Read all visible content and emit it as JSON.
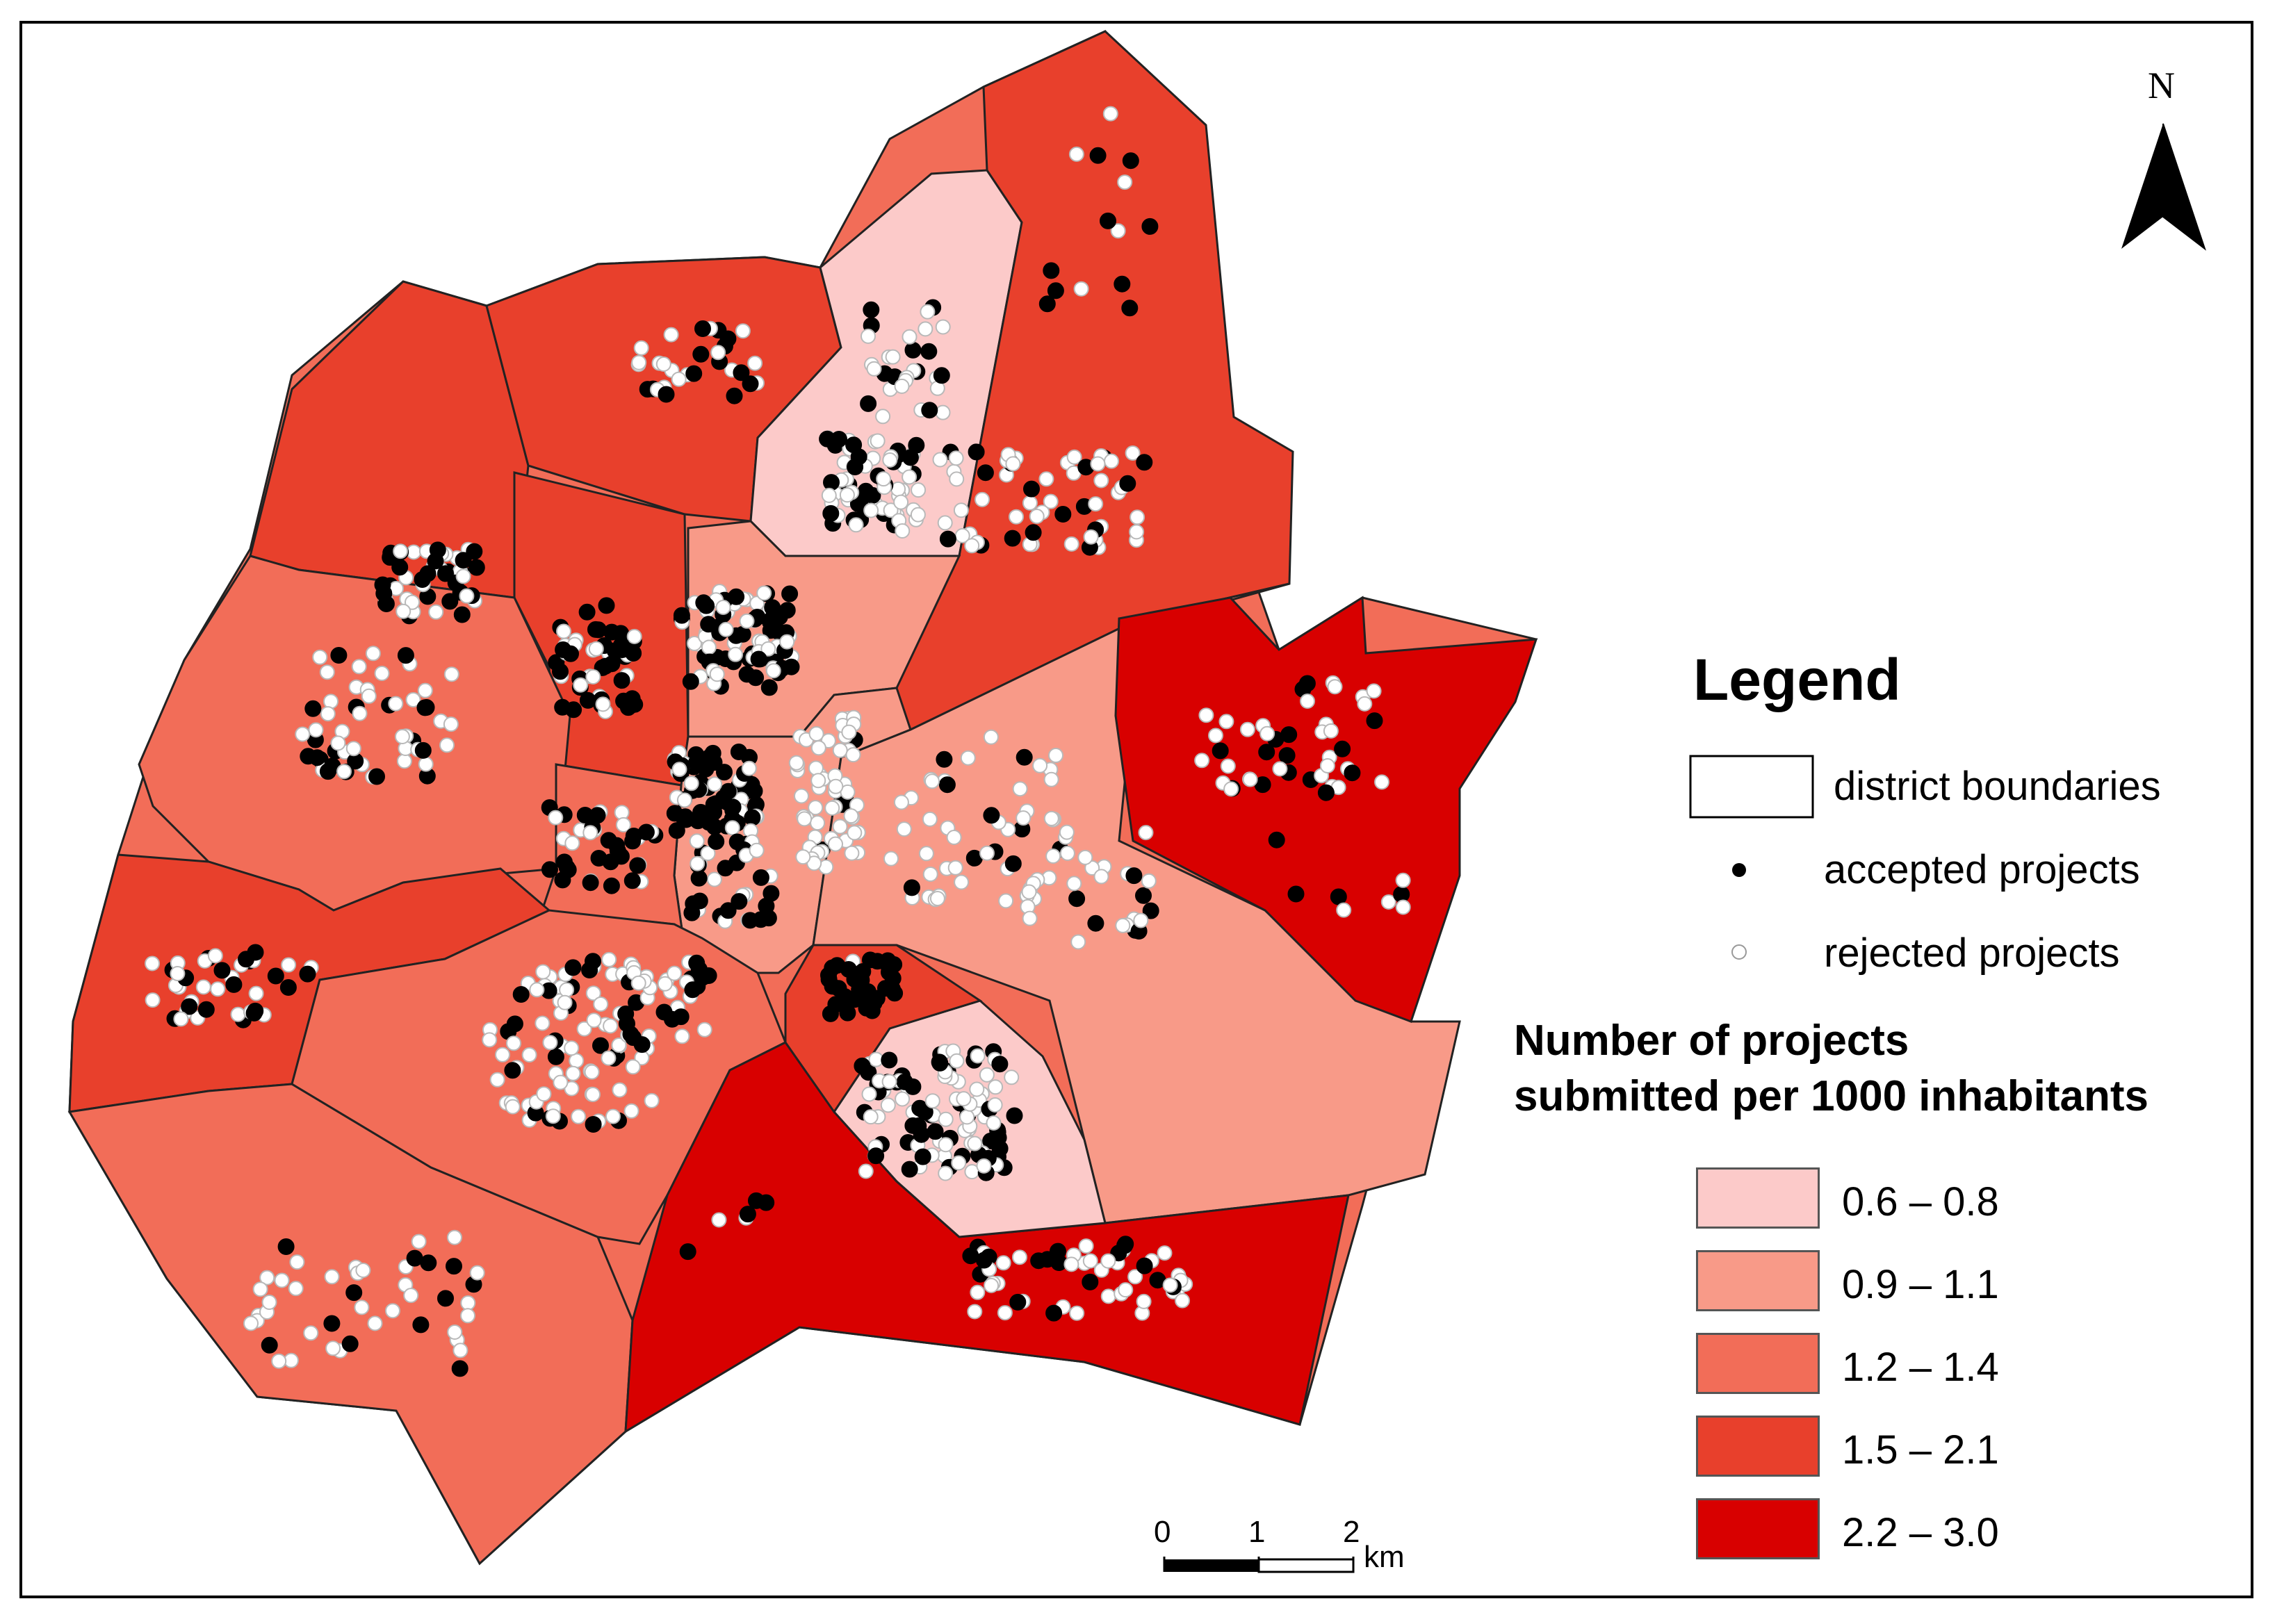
{
  "legend": {
    "title": "Legend",
    "district_boundaries": "district boundaries",
    "accepted": "accepted projects",
    "rejected": "rejected projects",
    "heading_line1": "Number of projects",
    "heading_line2": "submitted per 1000 inhabitants",
    "classes": [
      {
        "label": "0.6 – 0.8",
        "color": "#fccac9"
      },
      {
        "label": "0.9 – 1.1",
        "color": "#f89a88"
      },
      {
        "label": "1.2 – 1.4",
        "color": "#f26d58"
      },
      {
        "label": "1.5 – 2.1",
        "color": "#e8402c"
      },
      {
        "label": "2.2 – 3.0",
        "color": "#d80000"
      }
    ]
  },
  "north": {
    "label": "N",
    "icon": "north-arrow-icon"
  },
  "scale": {
    "labels": [
      "0",
      "1",
      "2"
    ],
    "unit": "km"
  },
  "colors": {
    "boundary": "#222222",
    "accepted_dot": "#000000",
    "rejected_dot": "#ffffff"
  }
}
